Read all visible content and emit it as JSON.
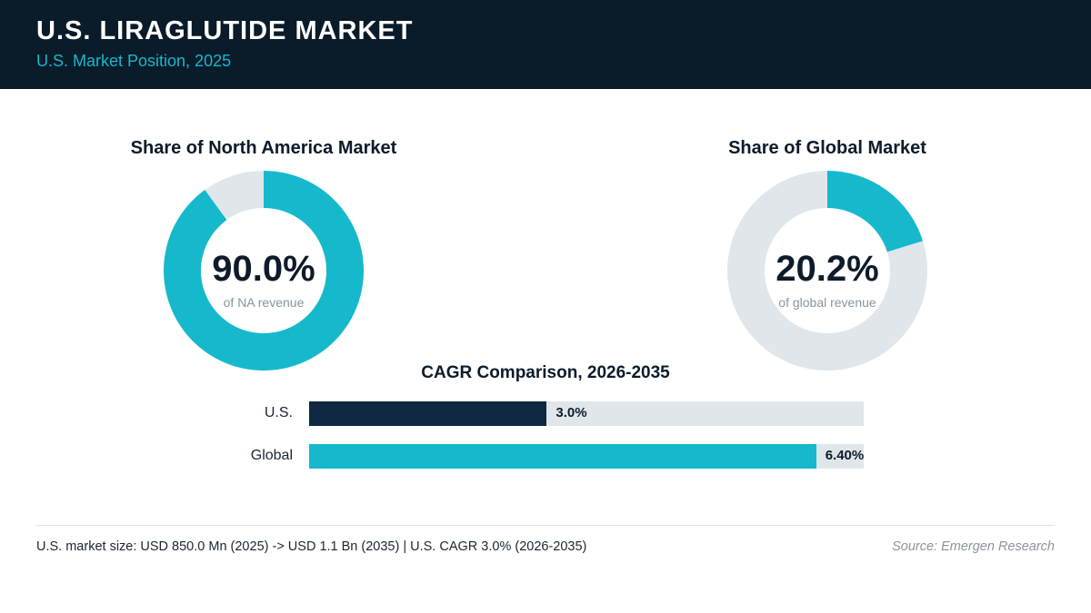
{
  "header": {
    "title": "U.S. LIRAGLUTIDE MARKET",
    "subtitle": "U.S. Market Position, 2025"
  },
  "colors": {
    "teal": "#16b8cc",
    "navy": "#0d2840",
    "track": "#e1e6eb",
    "header_bg": "#0a1b2a"
  },
  "chart_data": [
    {
      "type": "pie",
      "title": "Share of North America Market",
      "value": 90.0,
      "value_label": "90.0%",
      "caption": "of NA revenue",
      "slices": [
        90.0,
        10.0
      ]
    },
    {
      "type": "pie",
      "title": "Share of Global Market",
      "value": 20.2,
      "value_label": "20.2%",
      "caption": "of global revenue",
      "slices": [
        20.2,
        79.8
      ]
    },
    {
      "type": "bar",
      "title": "CAGR Comparison, 2026-2035",
      "categories": [
        "U.S.",
        "Global"
      ],
      "values": [
        3.0,
        6.4
      ],
      "value_labels": [
        "3.0%",
        "6.40%"
      ],
      "xlim": [
        0,
        7
      ]
    }
  ],
  "footer": {
    "note": "U.S. market size: USD 850.0 Mn (2025) -> USD 1.1 Bn (2035)  |  U.S. CAGR 3.0% (2026-2035)",
    "source": "Source: Emergen Research"
  }
}
